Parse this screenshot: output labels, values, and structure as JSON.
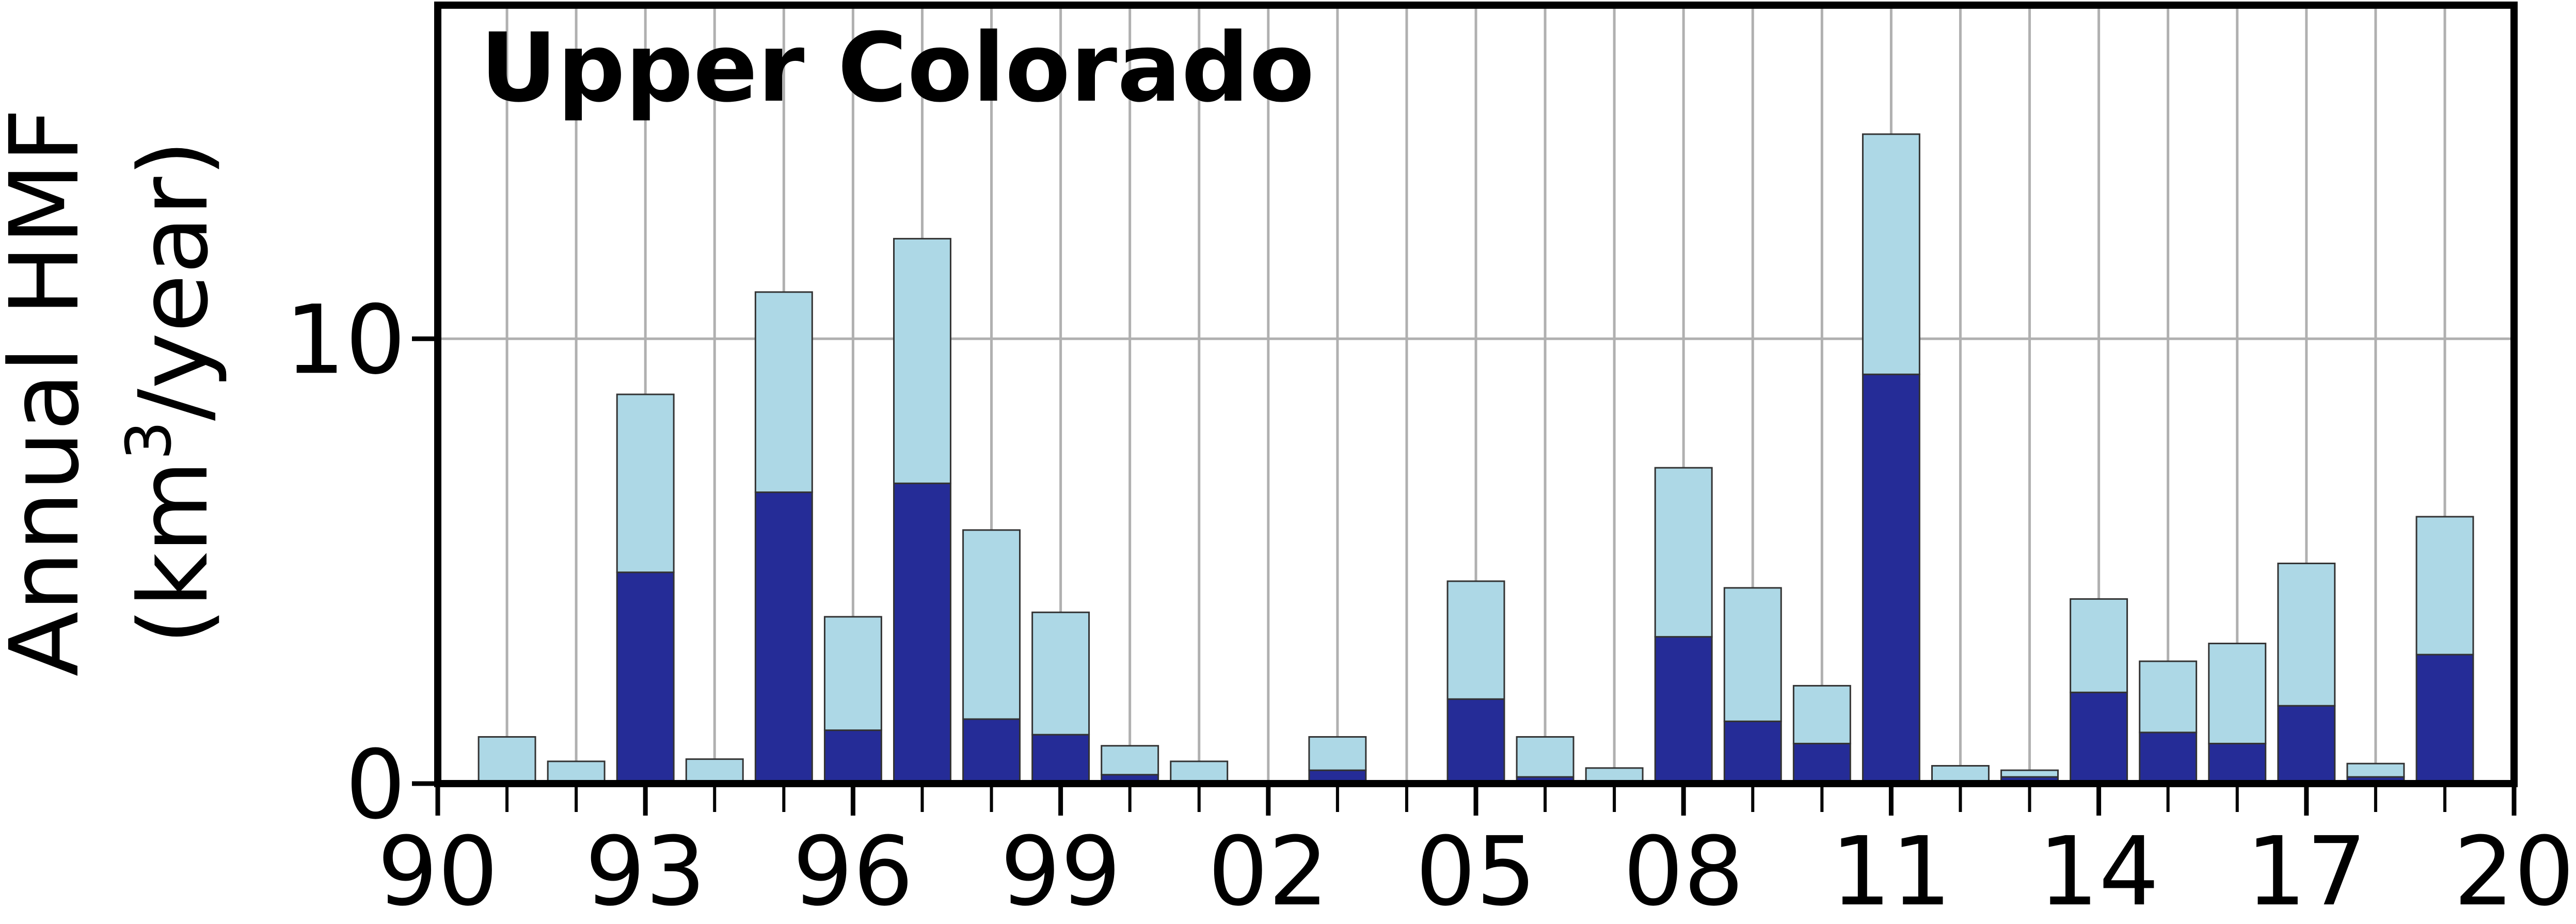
{
  "chart_data": {
    "type": "bar",
    "stacked": true,
    "title": "Upper Colorado",
    "ylabel_line1": "Annual HMF",
    "ylabel_line2_prefix": "(km",
    "ylabel_line2_sup": "3",
    "ylabel_line2_suffix": "/year)",
    "xlim": [
      1990,
      2020
    ],
    "ylim": [
      0,
      17.5
    ],
    "yticks": [
      0,
      10
    ],
    "ytick_labels": [
      "0",
      "10"
    ],
    "xticks": [
      1990,
      1993,
      1996,
      1999,
      2002,
      2005,
      2008,
      2011,
      2014,
      2017,
      2020
    ],
    "xtick_labels": [
      "90",
      "93",
      "96",
      "99",
      "02",
      "05",
      "08",
      "11",
      "14",
      "17",
      "20"
    ],
    "grid": true,
    "colors": {
      "lower": "#252c97",
      "upper": "#add8e6",
      "grid": "#b0b0b0",
      "axis": "#000000"
    },
    "categories": [
      1991,
      1992,
      1993,
      1994,
      1995,
      1996,
      1997,
      1998,
      1999,
      2000,
      2001,
      2002,
      2003,
      2004,
      2005,
      2006,
      2007,
      2008,
      2009,
      2010,
      2011,
      2012,
      2013,
      2014,
      2015,
      2016,
      2017,
      2018,
      2019
    ],
    "series": [
      {
        "values": [
          0,
          0,
          4.75,
          0,
          6.55,
          1.2,
          6.75,
          1.45,
          1.1,
          0.2,
          0,
          0,
          0.3,
          0,
          1.9,
          0.15,
          0,
          3.3,
          1.4,
          0.9,
          9.2,
          0,
          0.15,
          2.05,
          1.15,
          0.9,
          1.75,
          0.15,
          2.9
        ]
      },
      {
        "values": [
          1.05,
          0.5,
          4.0,
          0.55,
          4.5,
          2.55,
          5.5,
          4.25,
          2.75,
          0.65,
          0.5,
          0,
          0.75,
          0,
          2.65,
          0.9,
          0.35,
          3.8,
          3.0,
          1.3,
          5.4,
          0.4,
          0.15,
          2.1,
          1.6,
          2.25,
          3.2,
          0.3,
          3.1
        ]
      }
    ]
  }
}
